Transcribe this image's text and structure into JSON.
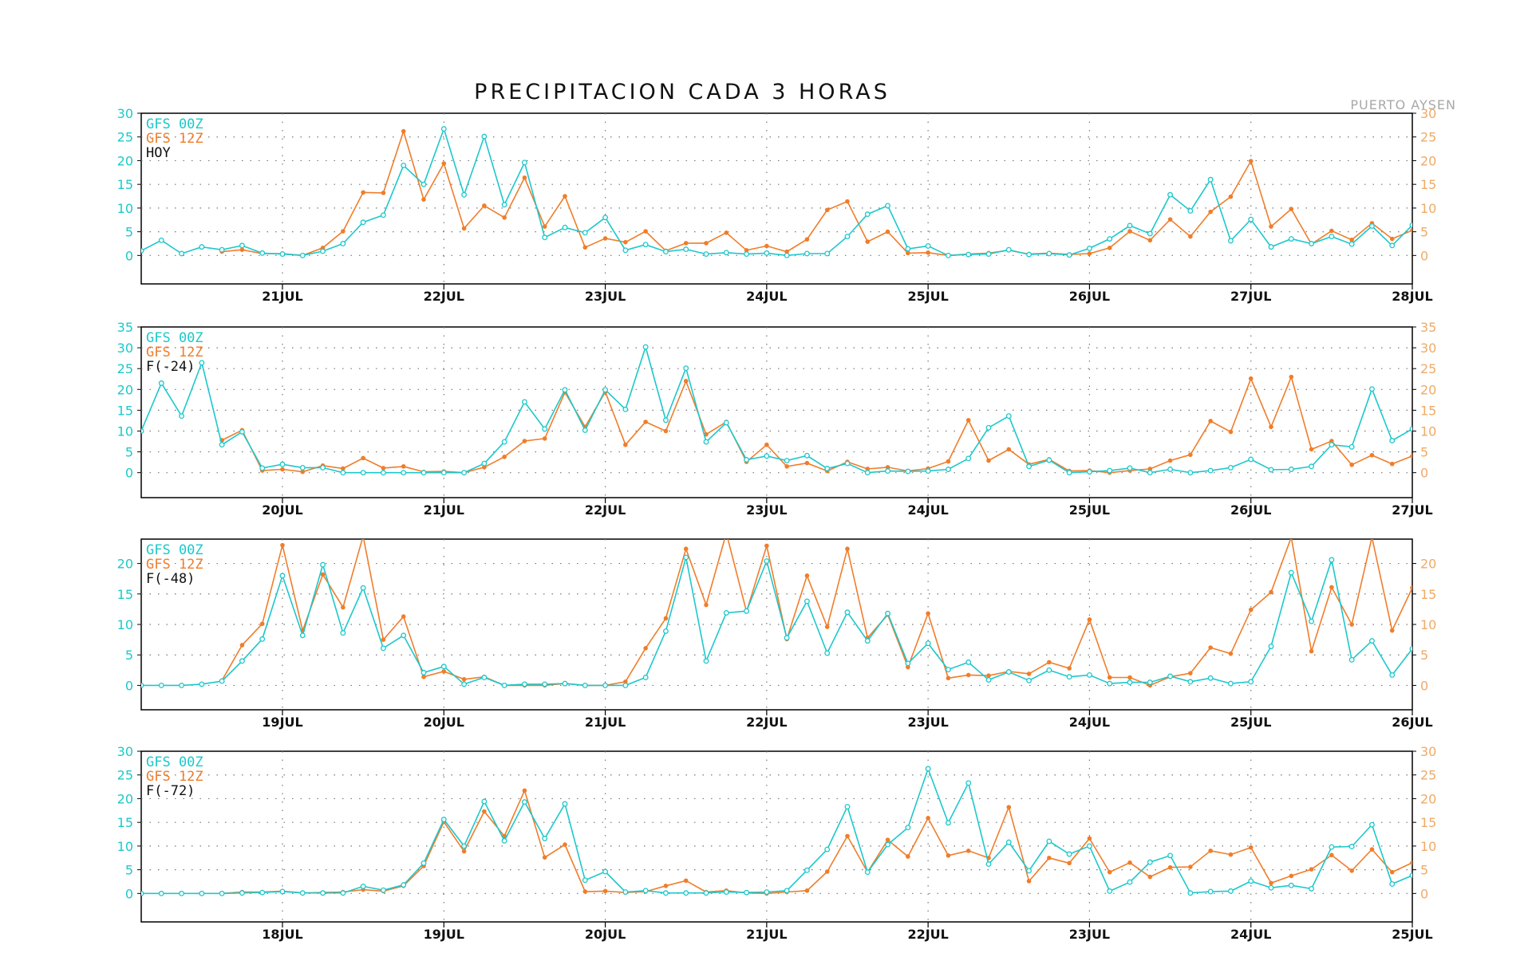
{
  "title": "PRECIPITACION CADA 3 HORAS",
  "station": "PUERTO AYSEN",
  "colors": {
    "gfs00z": "#1cc8cc",
    "gfs12z": "#f07d2a",
    "right_axis_text": "#f0aa66",
    "label": "#111111"
  },
  "chart_data": [
    {
      "type": "line",
      "panel_label": "HOY",
      "x_ticks": [
        "21JUL",
        "22JUL",
        "23JUL",
        "24JUL",
        "25JUL",
        "26JUL",
        "27JUL",
        "28JUL"
      ],
      "ylim": [
        -6,
        30
      ],
      "y_ticks": [
        0,
        5,
        10,
        15,
        20,
        25,
        30
      ],
      "series": [
        {
          "name": "GFS 00Z",
          "start": 0,
          "values": [
            1.0,
            3.2,
            0.4,
            1.8,
            1.2,
            2.1,
            0.5,
            0.3,
            0.0,
            0.9,
            2.5,
            7.0,
            8.5,
            19.0,
            15.0,
            26.7,
            12.8,
            25.1,
            10.7,
            19.6,
            3.8,
            5.9,
            4.8,
            8.0,
            1.1,
            2.3,
            0.8,
            1.3,
            0.3,
            0.6,
            0.3,
            0.5,
            0.0,
            0.4,
            0.4,
            4.0,
            8.7,
            10.5,
            1.4,
            2.0,
            0.0,
            0.2,
            0.3,
            1.2,
            0.2,
            0.4,
            0.1,
            1.5,
            3.5,
            6.3,
            4.6,
            12.8,
            9.4,
            16.0,
            3.1,
            7.6,
            1.8,
            3.5,
            2.5,
            4.0,
            2.4,
            6.2,
            2.1,
            6.4
          ]
        },
        {
          "name": "GFS 12Z",
          "start": 4,
          "values": [
            0.8,
            1.2,
            0.4,
            0.4,
            0.0,
            1.6,
            5.1,
            13.3,
            13.2,
            26.2,
            11.8,
            19.4,
            5.7,
            10.5,
            8.0,
            16.4,
            6.1,
            12.5,
            1.7,
            3.6,
            2.8,
            5.1,
            1.0,
            2.6,
            2.6,
            4.8,
            1.1,
            2.0,
            0.8,
            3.4,
            9.6,
            11.4,
            2.9,
            5.0,
            0.5,
            0.6,
            0.0,
            0.3,
            0.5,
            1.1,
            0.3,
            0.5,
            0.2,
            0.4,
            1.6,
            5.1,
            3.2,
            7.6,
            4.0,
            9.2,
            12.4,
            19.9,
            6.1,
            9.8,
            2.4,
            5.2,
            3.3,
            6.8,
            3.5,
            5.3
          ]
        }
      ]
    },
    {
      "type": "line",
      "panel_label": "F(-24)",
      "x_ticks": [
        "20JUL",
        "21JUL",
        "22JUL",
        "23JUL",
        "24JUL",
        "25JUL",
        "26JUL",
        "27JUL"
      ],
      "ylim": [
        -6,
        35
      ],
      "y_ticks": [
        0,
        5,
        10,
        15,
        20,
        25,
        30,
        35
      ],
      "series": [
        {
          "name": "GFS 00Z",
          "start": 0,
          "values": [
            10.0,
            21.5,
            13.6,
            26.4,
            6.7,
            9.8,
            1.1,
            2.0,
            1.2,
            1.2,
            0.0,
            0.0,
            0.0,
            0.0,
            0.0,
            0.0,
            0.0,
            2.2,
            7.4,
            17.0,
            10.5,
            19.9,
            10.2,
            19.9,
            15.2,
            30.2,
            12.6,
            25.1,
            7.4,
            12.0,
            3.1,
            4.0,
            2.9,
            4.1,
            1.0,
            2.2,
            0.0,
            0.4,
            0.3,
            0.4,
            0.8,
            3.4,
            10.8,
            13.6,
            1.5,
            3.0,
            0.0,
            0.2,
            0.5,
            1.1,
            0.0,
            0.8,
            0.0,
            0.5,
            1.2,
            3.2,
            0.7,
            0.8,
            1.5,
            6.7,
            6.2,
            20.1,
            7.7,
            10.5
          ]
        },
        {
          "name": "GFS 12Z",
          "start": 4,
          "values": [
            7.8,
            10.2,
            0.5,
            0.8,
            0.2,
            1.7,
            1.0,
            3.5,
            1.1,
            1.5,
            0.2,
            0.3,
            0.0,
            1.3,
            3.8,
            7.6,
            8.2,
            19.3,
            11.0,
            19.4,
            6.7,
            12.2,
            10.0,
            22.0,
            9.2,
            12.2,
            2.6,
            6.7,
            1.5,
            2.3,
            0.4,
            2.6,
            0.9,
            1.3,
            0.4,
            1.0,
            2.7,
            12.6,
            2.9,
            5.6,
            2.0,
            3.2,
            0.4,
            0.5,
            0.0,
            0.5,
            0.9,
            2.9,
            4.3,
            12.4,
            9.8,
            22.6,
            11.0,
            23.0,
            5.6,
            7.6,
            1.9,
            4.2,
            2.1,
            4.0
          ]
        }
      ]
    },
    {
      "type": "line",
      "panel_label": "F(-48)",
      "x_ticks": [
        "19JUL",
        "20JUL",
        "21JUL",
        "22JUL",
        "23JUL",
        "24JUL",
        "25JUL",
        "26JUL"
      ],
      "ylim": [
        -4,
        24
      ],
      "y_ticks": [
        0,
        5,
        10,
        15,
        20
      ],
      "series": [
        {
          "name": "GFS 00Z",
          "start": 0,
          "values": [
            0.0,
            0.0,
            0.0,
            0.2,
            0.7,
            4.0,
            7.6,
            18.0,
            8.2,
            19.8,
            8.6,
            16.0,
            6.1,
            8.2,
            2.1,
            3.1,
            0.2,
            1.3,
            0.0,
            0.2,
            0.2,
            0.3,
            0.0,
            0.0,
            0.0,
            1.3,
            8.9,
            21.0,
            4.0,
            11.9,
            12.2,
            20.4,
            7.8,
            13.8,
            5.3,
            12.0,
            7.3,
            11.8,
            3.6,
            6.9,
            2.6,
            3.8,
            0.9,
            2.2,
            0.8,
            2.5,
            1.4,
            1.7,
            0.3,
            0.5,
            0.5,
            1.5,
            0.6,
            1.2,
            0.3,
            0.6,
            6.4,
            18.5,
            10.5,
            20.6,
            4.2,
            7.3,
            1.7,
            6.0
          ]
        },
        {
          "name": "GFS 12Z",
          "start": 4,
          "values": [
            0.8,
            6.6,
            10.1,
            23.0,
            9.0,
            18.2,
            12.8,
            24.5,
            7.5,
            11.3,
            1.4,
            2.3,
            1.0,
            1.4,
            0.0,
            0.0,
            0.0,
            0.3,
            0.0,
            0.0,
            0.6,
            6.1,
            11.0,
            22.4,
            13.2,
            25.0,
            12.1,
            22.9,
            7.6,
            18.0,
            9.6,
            22.4,
            7.8,
            11.6,
            3.0,
            11.8,
            1.2,
            1.7,
            1.6,
            2.3,
            1.9,
            3.8,
            2.8,
            10.8,
            1.3,
            1.3,
            0.0,
            1.4,
            2.0,
            6.2,
            5.2,
            12.4,
            15.3,
            24.3,
            5.6,
            16.1,
            10.0,
            24.3,
            9.0,
            16.0
          ]
        }
      ]
    },
    {
      "type": "line",
      "panel_label": "F(-72)",
      "x_ticks": [
        "18JUL",
        "19JUL",
        "20JUL",
        "21JUL",
        "22JUL",
        "23JUL",
        "24JUL",
        "25JUL"
      ],
      "ylim": [
        -6,
        30
      ],
      "y_ticks": [
        0,
        5,
        10,
        15,
        20,
        25,
        30
      ],
      "series": [
        {
          "name": "GFS 00Z",
          "start": 0,
          "values": [
            0.0,
            0.0,
            0.0,
            0.0,
            0.0,
            0.1,
            0.2,
            0.4,
            0.1,
            0.1,
            0.1,
            1.5,
            0.7,
            1.8,
            6.4,
            15.6,
            10.0,
            19.4,
            11.1,
            19.3,
            11.6,
            18.9,
            2.8,
            4.6,
            0.3,
            0.6,
            0.1,
            0.1,
            0.1,
            0.3,
            0.2,
            0.3,
            0.6,
            4.9,
            9.3,
            18.3,
            4.5,
            10.3,
            13.9,
            26.3,
            14.9,
            23.3,
            6.2,
            10.8,
            4.8,
            11.0,
            8.3,
            10.0,
            0.5,
            2.4,
            6.6,
            8.0,
            0.1,
            0.4,
            0.5,
            2.6,
            1.2,
            1.7,
            1.0,
            9.8,
            9.9,
            14.5,
            2.0,
            3.8
          ]
        },
        {
          "name": "GFS 12Z",
          "start": 4,
          "values": [
            0.0,
            0.3,
            0.3,
            0.5,
            0.1,
            0.2,
            0.3,
            0.8,
            0.5,
            1.6,
            5.8,
            15.1,
            8.9,
            17.3,
            12.1,
            21.7,
            7.6,
            10.3,
            0.4,
            0.5,
            0.2,
            0.4,
            1.6,
            2.7,
            0.3,
            0.6,
            0.1,
            0.0,
            0.3,
            0.6,
            4.6,
            12.1,
            4.5,
            11.3,
            7.8,
            15.9,
            8.0,
            9.0,
            7.5,
            18.2,
            2.6,
            7.5,
            6.4,
            11.6,
            4.5,
            6.5,
            3.5,
            5.5,
            5.6,
            9.0,
            8.2,
            9.7,
            2.2,
            3.7,
            5.1,
            8.1,
            4.8,
            9.3,
            4.5,
            6.5
          ]
        }
      ]
    }
  ]
}
